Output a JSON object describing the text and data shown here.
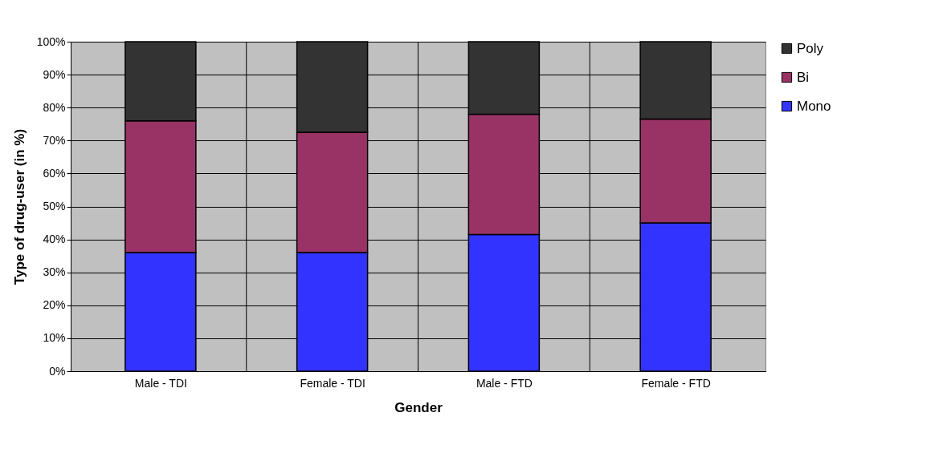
{
  "chart_data": {
    "type": "bar",
    "stacked": true,
    "xlabel": "Gender",
    "ylabel": "Type of drug-user (in %)",
    "categories": [
      "Male - TDI",
      "Female - TDI",
      "Male - FTD",
      "Female - FTD"
    ],
    "series": [
      {
        "name": "Mono",
        "color": "#3333ff",
        "values": [
          36,
          36,
          41.5,
          45
        ]
      },
      {
        "name": "Bi",
        "color": "#993366",
        "values": [
          40,
          36.5,
          36.5,
          31.5
        ]
      },
      {
        "name": "Poly",
        "color": "#333333",
        "values": [
          24,
          27.5,
          22,
          23.5
        ]
      }
    ],
    "ylim": [
      0,
      100
    ],
    "yticks": [
      {
        "value": 0,
        "label": "0%"
      },
      {
        "value": 10,
        "label": "10%"
      },
      {
        "value": 20,
        "label": "20%"
      },
      {
        "value": 30,
        "label": "30%"
      },
      {
        "value": 40,
        "label": "40%"
      },
      {
        "value": 50,
        "label": "50%"
      },
      {
        "value": 60,
        "label": "60%"
      },
      {
        "value": 70,
        "label": "70%"
      },
      {
        "value": 80,
        "label": "80%"
      },
      {
        "value": 90,
        "label": "90%"
      },
      {
        "value": 100,
        "label": "100%"
      }
    ],
    "grid": true,
    "legend": "right"
  }
}
